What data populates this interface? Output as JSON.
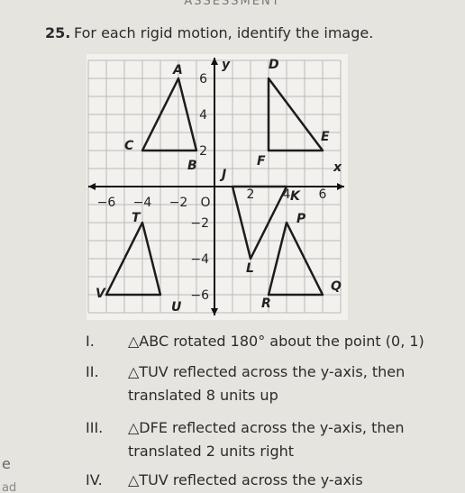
{
  "header": {
    "title": "ASSESSMENT"
  },
  "problem": {
    "number": "25.",
    "prompt": "For each rigid motion, identify the image."
  },
  "graph": {
    "axis_labels": {
      "x": "x",
      "y": "y"
    },
    "x_tick_labels": [
      "−6",
      "−4",
      "−2",
      "O",
      "2",
      "4",
      "6"
    ],
    "y_tick_labels": [
      "6",
      "4",
      "2",
      "−2",
      "−4",
      "−6"
    ],
    "points": [
      "A",
      "B",
      "C",
      "D",
      "E",
      "F",
      "J",
      "K",
      "L",
      "P",
      "Q",
      "R",
      "T",
      "U",
      "V"
    ]
  },
  "options": [
    {
      "numeral": "I.",
      "lines": [
        "△ABC rotated 180° about the point (0, 1)"
      ]
    },
    {
      "numeral": "II.",
      "lines": [
        "△TUV reflected across the y-axis, then",
        "translated 8 units up"
      ]
    },
    {
      "numeral": "III.",
      "lines": [
        "△DFE reflected across the y-axis, then",
        "translated 2 units right"
      ]
    },
    {
      "numeral": "IV.",
      "lines": [
        "△TUV reflected across the y-axis"
      ]
    }
  ],
  "margin_fragments": [
    "e",
    "ad"
  ]
}
